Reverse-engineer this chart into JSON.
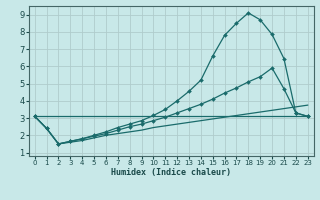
{
  "xlabel": "Humidex (Indice chaleur)",
  "background_color": "#c8e8e8",
  "grid_color": "#b0cccc",
  "line_color": "#1a6b6b",
  "xlim": [
    -0.5,
    23.5
  ],
  "ylim": [
    0.8,
    9.5
  ],
  "xticks": [
    0,
    1,
    2,
    3,
    4,
    5,
    6,
    7,
    8,
    9,
    10,
    11,
    12,
    13,
    14,
    15,
    16,
    17,
    18,
    19,
    20,
    21,
    22,
    23
  ],
  "yticks": [
    1,
    2,
    3,
    4,
    5,
    6,
    7,
    8,
    9
  ],
  "series": [
    {
      "x": [
        0,
        23
      ],
      "y": [
        3.1,
        3.1
      ],
      "marker": false
    },
    {
      "x": [
        0,
        1,
        2,
        3,
        4,
        5,
        6,
        7,
        8,
        9,
        10,
        11,
        12,
        13,
        14,
        15,
        16,
        17,
        18,
        19,
        20,
        21,
        22,
        23
      ],
      "y": [
        3.1,
        2.4,
        1.5,
        1.6,
        1.7,
        1.85,
        2.0,
        2.1,
        2.2,
        2.3,
        2.45,
        2.55,
        2.65,
        2.75,
        2.85,
        2.95,
        3.05,
        3.15,
        3.25,
        3.35,
        3.45,
        3.55,
        3.65,
        3.75
      ],
      "marker": false
    },
    {
      "x": [
        0,
        1,
        2,
        3,
        4,
        5,
        6,
        7,
        8,
        9,
        10,
        11,
        12,
        13,
        14,
        15,
        16,
        17,
        18,
        19,
        20,
        21,
        22,
        23
      ],
      "y": [
        3.1,
        2.4,
        1.5,
        1.65,
        1.8,
        1.95,
        2.1,
        2.3,
        2.5,
        2.65,
        2.85,
        3.05,
        3.3,
        3.55,
        3.8,
        4.1,
        4.45,
        4.75,
        5.1,
        5.4,
        5.9,
        4.7,
        3.3,
        3.1
      ],
      "marker": true
    },
    {
      "x": [
        0,
        1,
        2,
        3,
        4,
        5,
        6,
        7,
        8,
        9,
        10,
        11,
        12,
        13,
        14,
        15,
        16,
        17,
        18,
        19,
        20,
        21,
        22,
        23
      ],
      "y": [
        3.1,
        2.4,
        1.5,
        1.65,
        1.8,
        2.0,
        2.2,
        2.45,
        2.65,
        2.85,
        3.15,
        3.5,
        4.0,
        4.55,
        5.2,
        6.6,
        7.8,
        8.5,
        9.1,
        8.7,
        7.85,
        6.45,
        3.3,
        3.1
      ],
      "marker": true
    }
  ]
}
